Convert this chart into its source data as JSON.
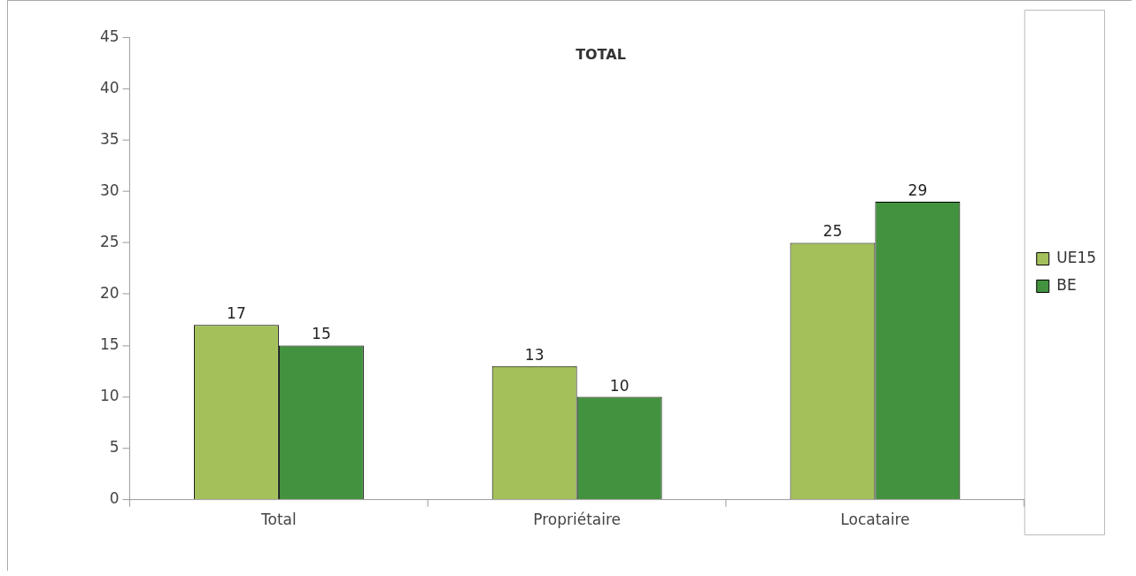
{
  "chart_data": {
    "type": "bar",
    "title": "TOTAL",
    "categories": [
      "Total",
      "Propriétaire",
      "Locataire"
    ],
    "series": [
      {
        "name": "UE15",
        "color": "#a3c05a",
        "values": [
          17,
          13,
          25
        ]
      },
      {
        "name": "BE",
        "color": "#43923f",
        "values": [
          15,
          10,
          29
        ]
      }
    ],
    "ylim": [
      0,
      45
    ],
    "yticks": [
      0,
      5,
      10,
      15,
      20,
      25,
      30,
      35,
      40,
      45
    ],
    "grid": false,
    "legend": "right",
    "data_labels": true
  }
}
